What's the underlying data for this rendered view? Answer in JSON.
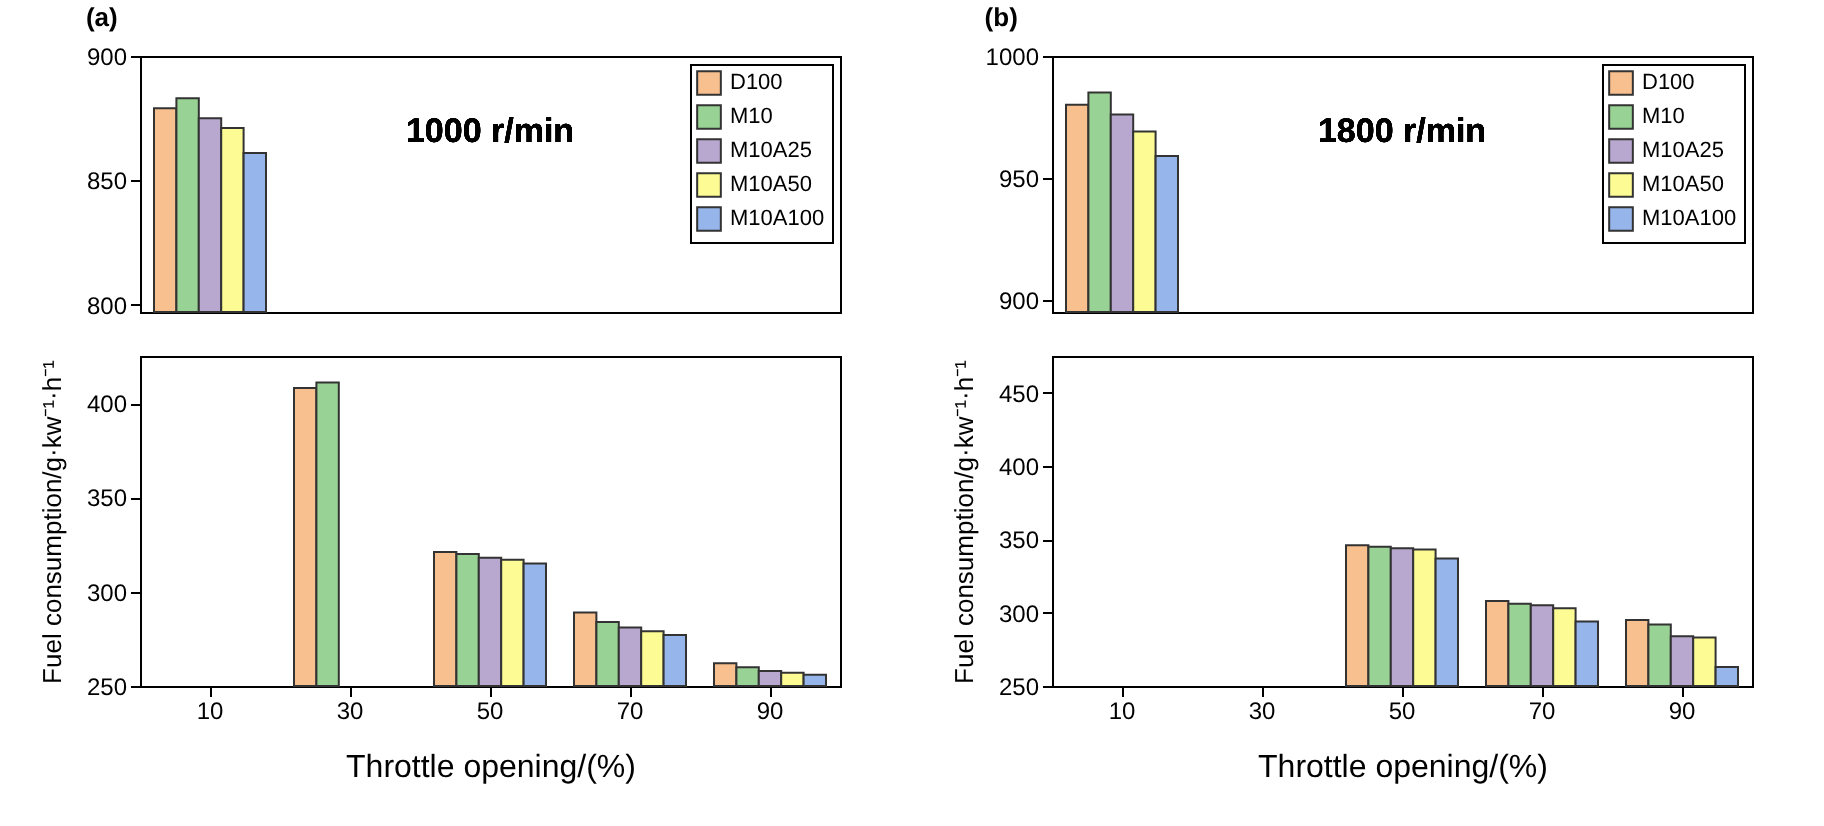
{
  "chart_data": [
    {
      "type": "bar",
      "title": "(a)",
      "annotations": [
        "1000 r/min"
      ],
      "categories": [
        "10",
        "30",
        "50",
        "70",
        "90"
      ],
      "ylim": [
        797,
        900
      ],
      "yticks": [
        800,
        850,
        900
      ],
      "legend": "top right",
      "tick_labels": "y",
      "series": [
        {
          "name": "D100",
          "color": "#f8c08f",
          "values": [
            879,
            null,
            null,
            null,
            null
          ]
        },
        {
          "name": "M10",
          "color": "#98d395",
          "values": [
            883,
            null,
            null,
            null,
            null
          ]
        },
        {
          "name": "M10A25",
          "color": "#b8a8d0",
          "values": [
            875,
            null,
            null,
            null,
            null
          ]
        },
        {
          "name": "M10A50",
          "color": "#fdfc94",
          "values": [
            871,
            null,
            null,
            null,
            null
          ]
        },
        {
          "name": "M10A100",
          "color": "#96b5ea",
          "values": [
            861,
            null,
            null,
            null,
            null
          ]
        }
      ]
    },
    {
      "type": "bar",
      "xlabel": "Throttle opening/(%)",
      "ylabel": "Fuel consumption/g·kw⁻¹·h⁻¹",
      "categories": [
        "10",
        "30",
        "50",
        "70",
        "90"
      ],
      "ylim": [
        250,
        425
      ],
      "yticks": [
        250,
        300,
        350,
        400
      ],
      "series": [
        {
          "color": "#f8c08f",
          "values": [
            null,
            408,
            321,
            289,
            262
          ]
        },
        {
          "color": "#98d395",
          "values": [
            null,
            411,
            320,
            284,
            260
          ]
        },
        {
          "color": "#b8a8d0",
          "values": [
            null,
            null,
            318,
            281,
            258
          ]
        },
        {
          "color": "#fdfc94",
          "values": [
            null,
            null,
            317,
            279,
            257
          ]
        },
        {
          "color": "#96b5ea",
          "values": [
            null,
            null,
            315,
            277,
            256
          ]
        }
      ]
    },
    {
      "type": "bar",
      "title": "(b)",
      "annotations": [
        "1800 r/min"
      ],
      "categories": [
        "10",
        "30",
        "50",
        "70",
        "90"
      ],
      "ylim": [
        895,
        1000
      ],
      "yticks": [
        900,
        950,
        1000
      ],
      "legend": "top right",
      "tick_labels": "y",
      "series": [
        {
          "name": "D100",
          "color": "#f8c08f",
          "values": [
            980,
            null,
            null,
            null,
            null
          ]
        },
        {
          "name": "M10",
          "color": "#98d395",
          "values": [
            985,
            null,
            null,
            null,
            null
          ]
        },
        {
          "name": "M10A25",
          "color": "#b8a8d0",
          "values": [
            976,
            null,
            null,
            null,
            null
          ]
        },
        {
          "name": "M10A50",
          "color": "#fdfc94",
          "values": [
            969,
            null,
            null,
            null,
            null
          ]
        },
        {
          "name": "M10A100",
          "color": "#96b5ea",
          "values": [
            959,
            null,
            null,
            null,
            null
          ]
        }
      ]
    },
    {
      "type": "bar",
      "xlabel": "Throttle opening/(%)",
      "ylabel": "Fuel consumption/g·kw⁻¹·h⁻¹",
      "categories": [
        "10",
        "30",
        "50",
        "70",
        "90"
      ],
      "ylim": [
        250,
        475
      ],
      "yticks": [
        250,
        300,
        350,
        400,
        450
      ],
      "series": [
        {
          "color": "#f8c08f",
          "values": [
            null,
            null,
            346,
            308,
            295
          ]
        },
        {
          "color": "#98d395",
          "values": [
            null,
            null,
            345,
            306,
            292
          ]
        },
        {
          "color": "#b8a8d0",
          "values": [
            null,
            null,
            344,
            305,
            284
          ]
        },
        {
          "color": "#fdfc94",
          "values": [
            null,
            null,
            343,
            303,
            283
          ]
        },
        {
          "color": "#96b5ea",
          "values": [
            null,
            null,
            337,
            294,
            263
          ]
        }
      ]
    }
  ]
}
